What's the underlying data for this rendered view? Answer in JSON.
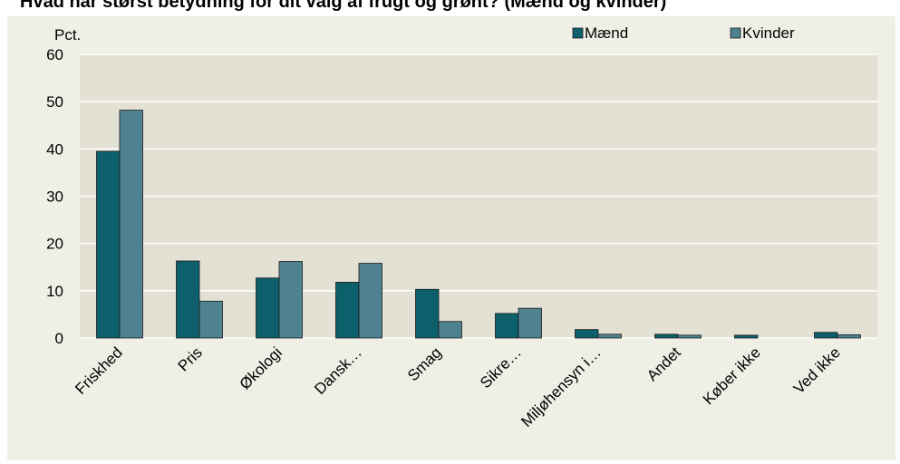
{
  "chart_data": {
    "type": "bar",
    "title": "Hvad har størst betydning for dit valg af frugt og grønt? (Mænd og kvinder)",
    "y_label": "Pct.",
    "categories": [
      "Friskhed",
      "Pris",
      "Økologi",
      "Dansk…",
      "Smag",
      "Sikre…",
      "Miljøhensyn i…",
      "Andet",
      "Køber ikke",
      "Ved ikke"
    ],
    "series": [
      {
        "name": "Mænd",
        "color": "#0d5f6b",
        "values": [
          39.5,
          16.3,
          12.7,
          11.8,
          10.3,
          5.2,
          1.8,
          0.8,
          0.6,
          1.2
        ]
      },
      {
        "name": "Kvinder",
        "color": "#4f8290",
        "values": [
          48.2,
          7.8,
          16.2,
          15.8,
          3.5,
          6.3,
          0.8,
          0.6,
          0,
          0.7
        ]
      }
    ],
    "ylim": [
      0,
      60
    ],
    "yticks": [
      0,
      10,
      20,
      30,
      40,
      50,
      60
    ],
    "grid": true
  }
}
